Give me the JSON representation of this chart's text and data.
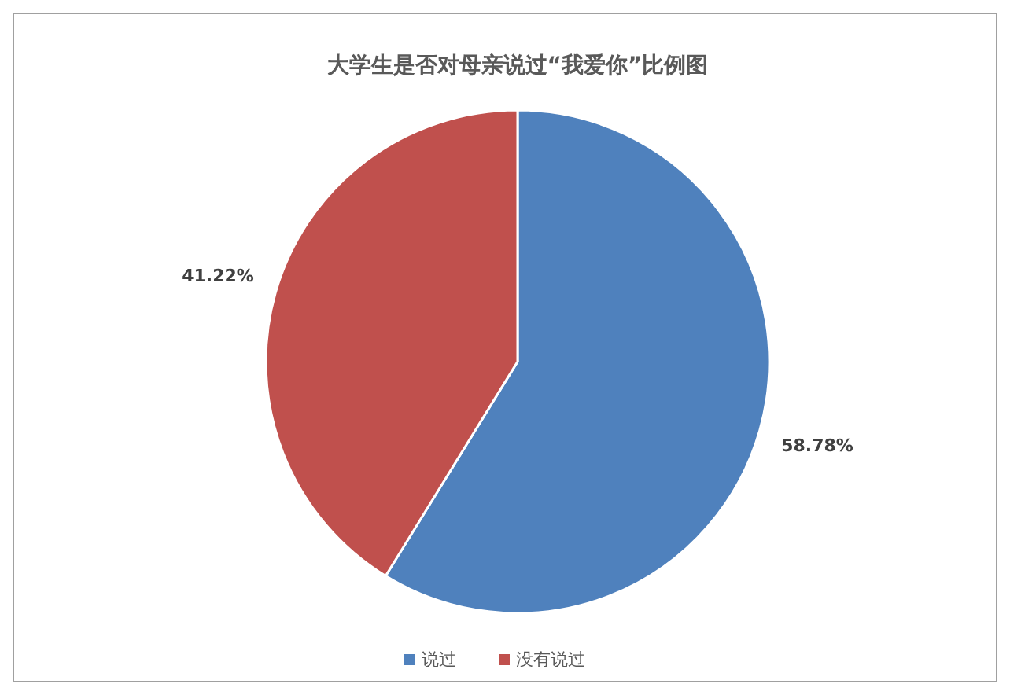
{
  "chart_data": {
    "type": "pie",
    "title": "大学生是否对母亲说过“我爱你”比例图",
    "categories": [
      "说过",
      "没有说过"
    ],
    "values": [
      58.78,
      41.22
    ],
    "colors": [
      "#4f81bd",
      "#c0504d"
    ],
    "value_labels": [
      "58.78%",
      "41.22%"
    ],
    "legend": "bottom"
  }
}
